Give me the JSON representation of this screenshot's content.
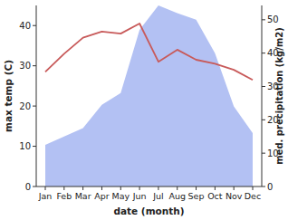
{
  "chart_data": {
    "type": "line",
    "categories": [
      "Jan",
      "Feb",
      "Mar",
      "Apr",
      "May",
      "Jun",
      "Jul",
      "Aug",
      "Sep",
      "Oct",
      "Nov",
      "Dec"
    ],
    "x_label": "date (month)",
    "y_label": "max temp (C)",
    "y2_label": "med. precipitation (kg/m2)",
    "series": [
      {
        "type": "area",
        "axis": "y2",
        "color": "#b3c1f3",
        "values": [
          12.5,
          15,
          17.5,
          24.5,
          28,
          47,
          54.3,
          52,
          50,
          40,
          24,
          16
        ]
      },
      {
        "type": "line",
        "color": "#c85a5a",
        "values": [
          28.5,
          33,
          37,
          38.5,
          38,
          40.5,
          31,
          34,
          31.5,
          30.5,
          29,
          26.5
        ]
      }
    ],
    "ylim": [
      0,
      45
    ],
    "yticks": [
      0,
      10,
      20,
      30,
      40
    ],
    "y2lim": [
      0,
      54.3
    ],
    "y2ticks": [
      0,
      10,
      20,
      30,
      40,
      50
    ]
  }
}
